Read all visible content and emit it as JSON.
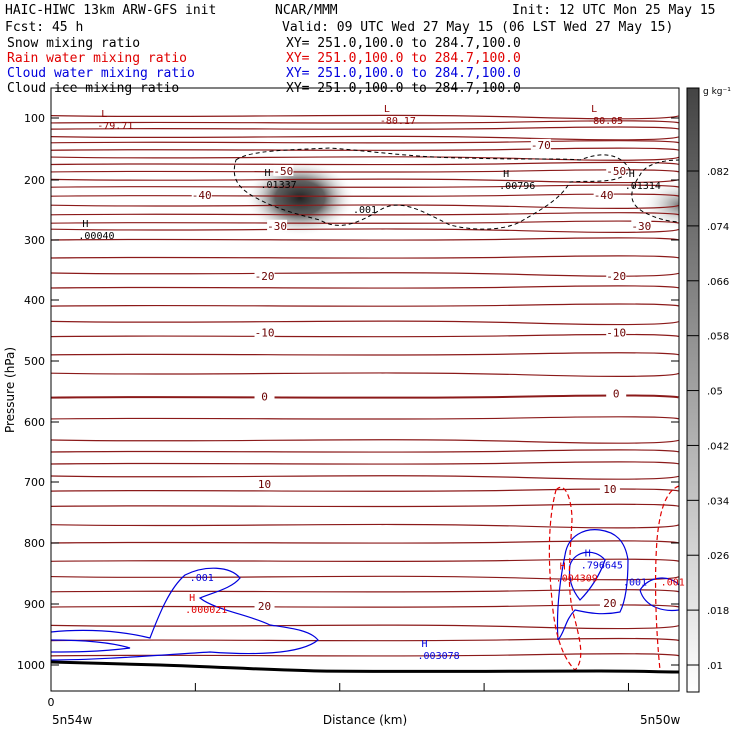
{
  "header": {
    "line1_left": "HAIC-HIWC 13km ARW-GFS init",
    "line1_mid": "NCAR/MMM",
    "line1_right": "Init: 12 UTC Mon 25 May 15",
    "fcst": "Fcst:   45 h",
    "valid": "Valid: 09 UTC Wed 27 May 15 (06 LST Wed 27 May 15)"
  },
  "fields": [
    {
      "name": "Snow mixing ratio",
      "xy": "XY= 251.0,100.0 to 284.7,100.0",
      "color": "#000000"
    },
    {
      "name": "Rain water mixing ratio",
      "xy": "XY= 251.0,100.0 to 284.7,100.0",
      "color": "#e00000"
    },
    {
      "name": "Cloud water mixing ratio",
      "xy": "XY= 251.0,100.0 to 284.7,100.0",
      "color": "#0000dd"
    },
    {
      "name": "Cloud ice mixing ratio",
      "xy": "XY= 251.0,100.0 to 284.7,100.0",
      "color": "#000000"
    }
  ],
  "chart_data": {
    "type": "cross-section",
    "ylabel": "Pressure (hPa)",
    "xlabel": "Distance (km)",
    "x_start_label": "5n54w",
    "x_end_label": "5n50w",
    "x_ticks": [
      "0"
    ],
    "ylim": [
      1070,
      50
    ],
    "y_ticks": [
      100,
      200,
      300,
      400,
      500,
      600,
      700,
      800,
      900,
      1000
    ],
    "colorbar": {
      "unit": "g kg⁻¹",
      "ticks": [
        ".082",
        ".074",
        ".066",
        ".058",
        ".05",
        ".042",
        ".034",
        ".026",
        ".018",
        ".01"
      ]
    },
    "isotherm_labels": [
      {
        "text": "-70",
        "dx": 0.78,
        "p": 145
      },
      {
        "text": "-50",
        "dx": 0.37,
        "p": 187
      },
      {
        "text": "-50",
        "dx": 0.9,
        "p": 187
      },
      {
        "text": "-40",
        "dx": 0.24,
        "p": 227
      },
      {
        "text": "-40",
        "dx": 0.88,
        "p": 227
      },
      {
        "text": "-30",
        "dx": 0.36,
        "p": 278
      },
      {
        "text": "-30",
        "dx": 0.94,
        "p": 278
      },
      {
        "text": "-20",
        "dx": 0.34,
        "p": 362
      },
      {
        "text": "-20",
        "dx": 0.9,
        "p": 362
      },
      {
        "text": "-10",
        "dx": 0.34,
        "p": 455
      },
      {
        "text": "-10",
        "dx": 0.9,
        "p": 455
      },
      {
        "text": "0",
        "dx": 0.34,
        "p": 560
      },
      {
        "text": "0",
        "dx": 0.9,
        "p": 555
      },
      {
        "text": "10",
        "dx": 0.34,
        "p": 705
      },
      {
        "text": "10",
        "dx": 0.89,
        "p": 713
      },
      {
        "text": "20",
        "dx": 0.34,
        "p": 905
      },
      {
        "text": "20",
        "dx": 0.89,
        "p": 900
      }
    ],
    "extrema": [
      {
        "mark": "L",
        "value": "-79.71",
        "dx": 0.08,
        "p": 103,
        "color": "#8b0000"
      },
      {
        "mark": "L",
        "value": "-80.17",
        "dx": 0.53,
        "p": 95,
        "color": "#8b0000"
      },
      {
        "mark": "L",
        "value": "-80.05",
        "dx": 0.86,
        "p": 95,
        "color": "#8b0000"
      },
      {
        "mark": "H",
        "value": ".01337",
        "dx": 0.34,
        "p": 198,
        "color": "#000000"
      },
      {
        "mark": "H",
        "value": ".00796",
        "dx": 0.72,
        "p": 200,
        "color": "#000000"
      },
      {
        "mark": "H",
        "value": ".01314",
        "dx": 0.92,
        "p": 200,
        "color": "#000000"
      },
      {
        "mark": "H",
        "value": ".00040",
        "dx": 0.05,
        "p": 283,
        "color": "#000000"
      },
      {
        "mark": "H",
        "value": ".000021",
        "dx": 0.22,
        "p": 900,
        "color": "#e00000"
      },
      {
        "mark": "H",
        "value": ".003078",
        "dx": 0.59,
        "p": 975,
        "color": "#0000dd"
      },
      {
        "mark": "H",
        "value": ".004309",
        "dx": 0.81,
        "p": 848,
        "color": "#e00000"
      },
      {
        "mark": "H",
        "value": ".796645",
        "dx": 0.85,
        "p": 827,
        "color": "#0000dd"
      }
    ],
    "contour_labels": [
      {
        "text": ".001",
        "dx": 0.5,
        "p": 255,
        "color": "#000000"
      },
      {
        "text": ".001",
        "dx": 0.24,
        "p": 862,
        "color": "#0000dd"
      },
      {
        "text": ".001",
        "dx": 0.93,
        "p": 870,
        "color": "#0000dd"
      },
      {
        "text": ".001",
        "dx": 0.99,
        "p": 870,
        "color": "#e00000"
      }
    ]
  }
}
